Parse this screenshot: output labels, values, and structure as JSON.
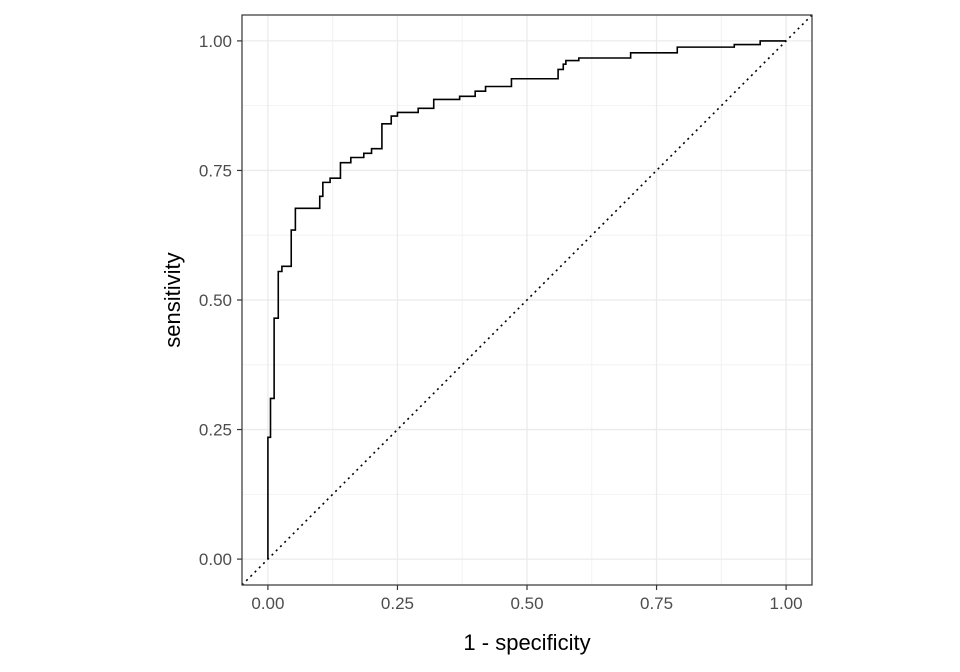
{
  "chart_data": {
    "type": "line",
    "title": "",
    "xlabel": "1 - specificity",
    "ylabel": "sensitivity",
    "xlim": [
      -0.05,
      1.05
    ],
    "ylim": [
      -0.05,
      1.05
    ],
    "x_ticks": [
      0,
      0.25,
      0.5,
      0.75,
      1
    ],
    "x_tick_labels": [
      "0.00",
      "0.25",
      "0.50",
      "0.75",
      "1.00"
    ],
    "y_ticks": [
      0,
      0.25,
      0.5,
      0.75,
      1
    ],
    "y_tick_labels": [
      "0.00",
      "0.25",
      "0.50",
      "0.75",
      "1.00"
    ],
    "grid": true,
    "legend": "none",
    "reference_line": {
      "x": [
        -0.05,
        1.05
      ],
      "y": [
        -0.05,
        1.05
      ],
      "style": "dotted"
    },
    "series": [
      {
        "step": true,
        "x": [
          0.0,
          0.0,
          0.005,
          0.005,
          0.012,
          0.012,
          0.02,
          0.02,
          0.027,
          0.027,
          0.045,
          0.045,
          0.053,
          0.053,
          0.06,
          0.06,
          0.1,
          0.1,
          0.106,
          0.106,
          0.12,
          0.12,
          0.14,
          0.14,
          0.16,
          0.16,
          0.185,
          0.185,
          0.2,
          0.2,
          0.22,
          0.22,
          0.238,
          0.238,
          0.25,
          0.25,
          0.29,
          0.29,
          0.32,
          0.32,
          0.37,
          0.37,
          0.4,
          0.4,
          0.42,
          0.42,
          0.47,
          0.47,
          0.56,
          0.56,
          0.57,
          0.57,
          0.575,
          0.575,
          0.6,
          0.6,
          0.7,
          0.7,
          0.79,
          0.79,
          0.9,
          0.9,
          0.95,
          0.95,
          1.0
        ],
        "y": [
          0.0,
          0.235,
          0.235,
          0.31,
          0.31,
          0.465,
          0.465,
          0.555,
          0.555,
          0.565,
          0.565,
          0.635,
          0.635,
          0.677,
          0.677,
          0.677,
          0.677,
          0.7,
          0.7,
          0.727,
          0.727,
          0.735,
          0.735,
          0.765,
          0.765,
          0.775,
          0.775,
          0.783,
          0.783,
          0.792,
          0.792,
          0.84,
          0.84,
          0.855,
          0.855,
          0.862,
          0.862,
          0.87,
          0.87,
          0.887,
          0.887,
          0.893,
          0.893,
          0.903,
          0.903,
          0.912,
          0.912,
          0.927,
          0.927,
          0.945,
          0.945,
          0.955,
          0.955,
          0.962,
          0.962,
          0.967,
          0.967,
          0.977,
          0.977,
          0.988,
          0.988,
          0.993,
          0.993,
          1.0,
          1.0
        ]
      }
    ]
  }
}
